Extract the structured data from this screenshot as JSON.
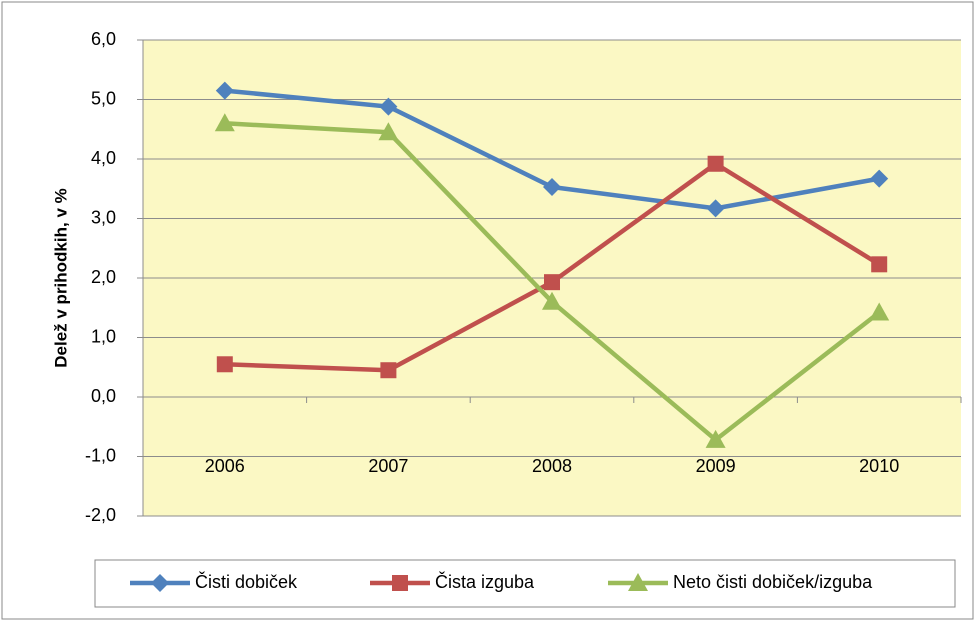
{
  "chart_data": {
    "type": "line",
    "y_label": "Delež v prihodkih, v %",
    "categories": [
      "2006",
      "2007",
      "2008",
      "2009",
      "2010"
    ],
    "series": [
      {
        "name": "Čisti dobiček",
        "color": "#4f81bd",
        "marker": "diamond",
        "values": [
          5.15,
          4.88,
          3.53,
          3.17,
          3.67
        ]
      },
      {
        "name": "Čista izguba",
        "color": "#c0504d",
        "marker": "square",
        "values": [
          0.55,
          0.45,
          1.93,
          3.92,
          2.23
        ]
      },
      {
        "name": "Neto čisti dobiček/izguba",
        "color": "#9bbb59",
        "marker": "triangle",
        "values": [
          4.6,
          4.45,
          1.6,
          -0.72,
          1.42
        ]
      }
    ],
    "ylim": [
      -2,
      6
    ],
    "yticks": [
      {
        "value": -2,
        "label": "-2,0"
      },
      {
        "value": -1,
        "label": "-1,0"
      },
      {
        "value": 0,
        "label": "0,0"
      },
      {
        "value": 1,
        "label": "1,0"
      },
      {
        "value": 2,
        "label": "2,0"
      },
      {
        "value": 3,
        "label": "3,0"
      },
      {
        "value": 4,
        "label": "4,0"
      },
      {
        "value": 5,
        "label": "5,0"
      },
      {
        "value": 6,
        "label": "6,0"
      }
    ],
    "grid": true,
    "legend": "bottom"
  }
}
